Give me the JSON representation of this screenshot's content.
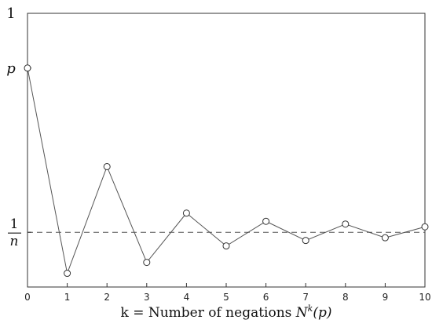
{
  "chart_data": {
    "type": "line",
    "title": "",
    "xlabel": "k = Number of negations N^k(p)",
    "xlabel_parts": {
      "prefix": "k = Number of negations ",
      "sym": "N",
      "sup": "k",
      "suffix": "(p)"
    },
    "ylabel": "",
    "x": [
      0,
      1,
      2,
      3,
      4,
      5,
      6,
      7,
      8,
      9,
      10
    ],
    "series": [
      {
        "values": [
          0.8,
          0.05,
          0.44,
          0.09,
          0.27,
          0.15,
          0.24,
          0.17,
          0.23,
          0.18,
          0.22
        ]
      }
    ],
    "reference_line": {
      "value": 0.2,
      "style": "dashed"
    },
    "xlim": [
      0,
      10
    ],
    "ylim": [
      0,
      1
    ],
    "xticks": [
      "0",
      "1",
      "2",
      "3",
      "4",
      "5",
      "6",
      "7",
      "8",
      "9",
      "10"
    ],
    "yticks": [
      {
        "value": 1,
        "label": "1"
      },
      {
        "value": 0.8,
        "label": "p"
      },
      {
        "value": 0.2,
        "numerator": "1",
        "denominator": "n"
      }
    ],
    "marker": "open-circle",
    "grid": false,
    "colors": {
      "line": "#555555",
      "axis": "#333333"
    }
  }
}
